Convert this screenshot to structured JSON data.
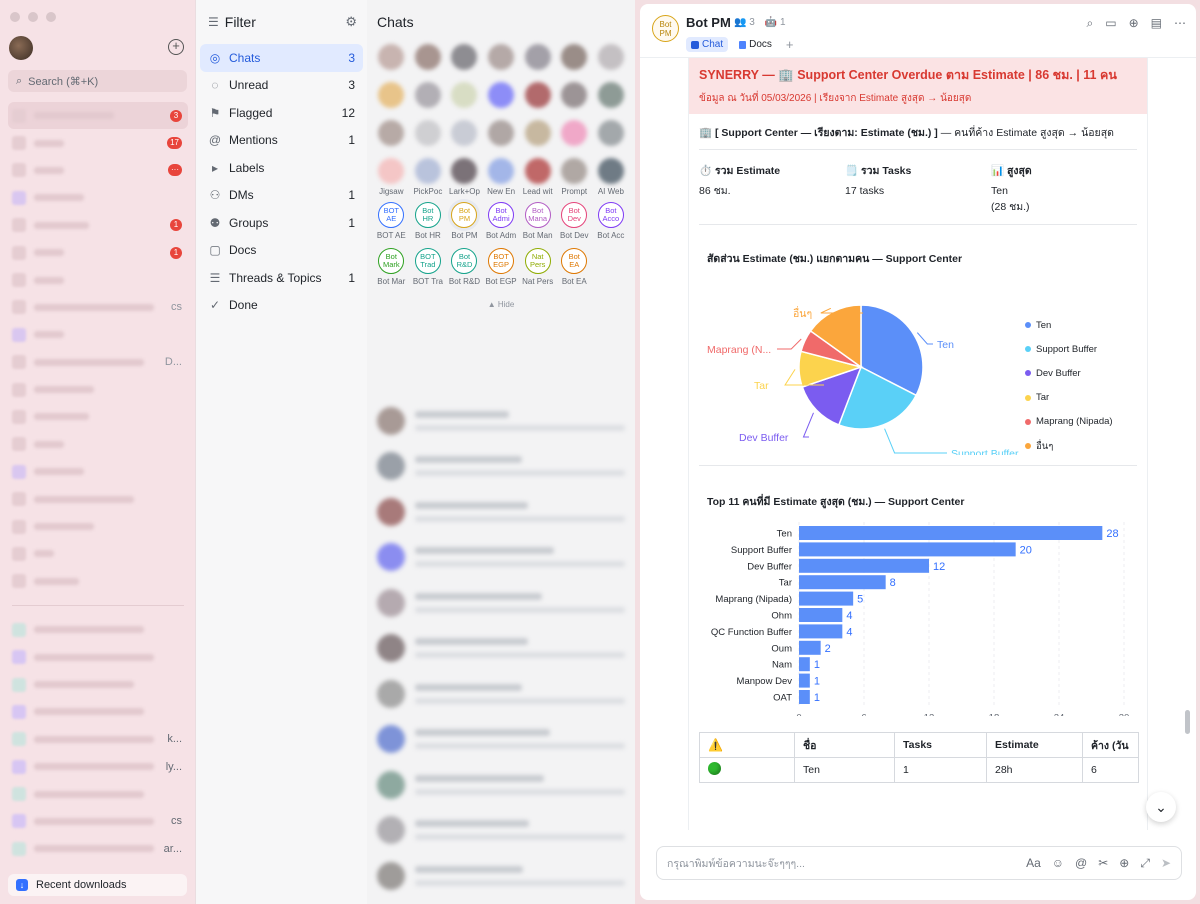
{
  "rail": {
    "search_placeholder": "Search (⌘+K)",
    "badges": [
      "3",
      "17",
      "···",
      "1",
      "1"
    ],
    "ghost_texts": [
      "cs",
      "D..."
    ],
    "bottom_ghosts": [
      "k...",
      "ly...",
      "cs",
      "ar..."
    ],
    "downloads_label": "Recent downloads"
  },
  "filter": {
    "title": "Filter",
    "items": [
      {
        "label": "Chats",
        "count": "3",
        "icon": "chat-icon"
      },
      {
        "label": "Unread",
        "count": "3",
        "icon": "unread-icon"
      },
      {
        "label": "Flagged",
        "count": "12",
        "icon": "flag-icon"
      },
      {
        "label": "Mentions",
        "count": "1",
        "icon": "at-icon"
      },
      {
        "label": "Labels",
        "count": "",
        "icon": "triangle-right-icon"
      },
      {
        "label": "DMs",
        "count": "1",
        "icon": "person-icon"
      },
      {
        "label": "Groups",
        "count": "1",
        "icon": "group-icon"
      },
      {
        "label": "Docs",
        "count": "",
        "icon": "doc-icon"
      },
      {
        "label": "Threads & Topics",
        "count": "1",
        "icon": "thread-icon"
      },
      {
        "label": "Done",
        "count": "",
        "icon": "check-icon"
      }
    ]
  },
  "chats": {
    "title": "Chats",
    "row_labels": [
      "Jigsaw",
      "PickPoc",
      "Lark+Op",
      "New En",
      "Lead wit",
      "Prompt",
      "AI Web"
    ],
    "bots": [
      {
        "circle": "BOT\nAE",
        "name": "BOT AE",
        "color": "#3370ff"
      },
      {
        "circle": "Bot\nHR",
        "name": "Bot HR",
        "color": "#14a38b"
      },
      {
        "circle": "Bot\nPM",
        "name": "Bot PM",
        "color": "#d8a51a"
      },
      {
        "circle": "Bot\nAdmi",
        "name": "Bot Adm",
        "color": "#7f3bf5"
      },
      {
        "circle": "Bot\nMana",
        "name": "Bot Man",
        "color": "#b25cc4"
      },
      {
        "circle": "Bot\nDev",
        "name": "Bot Dev",
        "color": "#e5437a"
      },
      {
        "circle": "Bot\nAcco",
        "name": "Bot Acc",
        "color": "#7f3bf5"
      },
      {
        "circle": "Bot\nMark",
        "name": "Bot Mar",
        "color": "#2ea121"
      },
      {
        "circle": "BOT\nTrad",
        "name": "BOT Tra",
        "color": "#14a38b"
      },
      {
        "circle": "Bot\nR&D",
        "name": "Bot R&D",
        "color": "#14a38b"
      },
      {
        "circle": "BOT\nEGP",
        "name": "Bot EGP",
        "color": "#de7802"
      },
      {
        "circle": "Nat\nPers",
        "name": "Nat Pers",
        "color": "#8fac02"
      },
      {
        "circle": "Bot\nEA",
        "name": "Bot EA",
        "color": "#de7802"
      }
    ],
    "hide_label": "Hide"
  },
  "chat": {
    "name": "Bot PM",
    "avatar_text": "Bot\nPM",
    "members": "3",
    "bots_count": "1",
    "tab_chat": "Chat",
    "tab_docs": "Docs",
    "banner_title": "SYNERRY — 🏢 Support Center Overdue ตาม Estimate | 86 ชม. | 11 คน",
    "banner_sub": "ข้อมูล ณ วันที่ 05/03/2026 | เรียงจาก Estimate สูงสุด → น้อยสุด",
    "section_bold": "🏢 [ Support Center — เรียงตาม: Estimate (ชม.) ]",
    "section_rest": " — คนที่ค้าง Estimate สูงสุด → น้อยสุด",
    "stats": [
      {
        "title": "⏱️ รวม Estimate",
        "line1": "86 ชม.",
        "line2": ""
      },
      {
        "title": "🗒️ รวม Tasks",
        "line1": "17 tasks",
        "line2": ""
      },
      {
        "title": "📊 สูงสุด",
        "line1": "Ten",
        "line2": "(28 ชม.)"
      }
    ],
    "table": {
      "headers": [
        "⚠️",
        "ชื่อ",
        "Tasks",
        "Estimate",
        "ค้าง (วัน"
      ],
      "row": [
        "",
        "Ten",
        "1",
        "28h",
        "6"
      ]
    },
    "composer_placeholder": "กรุณาพิมพ์ข้อความนะจ๊ะๆๆๆ..."
  },
  "chart_data": [
    {
      "type": "pie",
      "title": "สัดส่วน Estimate (ชม.) แยกตามคน — Support Center",
      "categories": [
        "Ten",
        "Support Buffer",
        "Dev Buffer",
        "Tar",
        "Maprang (Nipada)",
        "อื่นๆ"
      ],
      "slice_labels": [
        "Ten",
        "Support Buffer",
        "Dev Buffer",
        "Tar",
        "Maprang (N...",
        "อื่นๆ"
      ],
      "values": [
        28,
        20,
        12,
        8,
        5,
        13
      ],
      "colors": [
        "#5b8ff9",
        "#5ad0f7",
        "#7b5cf0",
        "#fcd34d",
        "#f06a6a",
        "#fba63c"
      ],
      "legend": "right"
    },
    {
      "type": "bar",
      "orientation": "horizontal",
      "title": "Top 11 คนที่มี Estimate สูงสุด (ชม.) — Support Center",
      "categories": [
        "Ten",
        "Support Buffer",
        "Dev Buffer",
        "Tar",
        "Maprang (Nipada)",
        "Ohm",
        "QC Function Buffer",
        "Oum",
        "Nam",
        "Manpow Dev",
        "OAT"
      ],
      "values": [
        28,
        20,
        12,
        8,
        5,
        4,
        4,
        2,
        1,
        1,
        1
      ],
      "xlim": [
        0,
        30
      ],
      "xticks": [
        0,
        6,
        12,
        18,
        24,
        30
      ],
      "color": "#5b8ff9",
      "grid": true
    }
  ]
}
